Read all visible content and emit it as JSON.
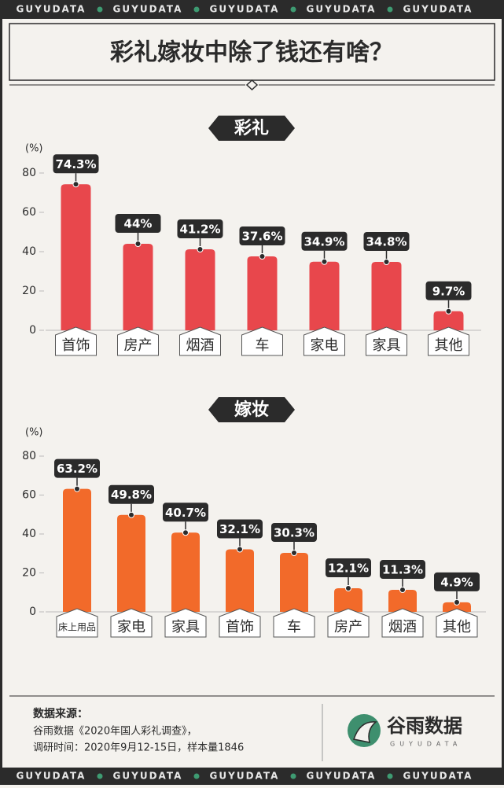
{
  "top_banner": [
    "GUYUDATA",
    "GUYUDATA",
    "GUYUDATA",
    "GUYUDATA",
    "GUYUDATA"
  ],
  "title": "彩礼嫁妆中除了钱还有啥？",
  "chart_data": [
    {
      "type": "bar",
      "title": "彩礼",
      "ylabel": "(%)",
      "categories": [
        "首饰",
        "房产",
        "烟酒",
        "车",
        "家电",
        "家具",
        "其他"
      ],
      "values": [
        74.3,
        44,
        41.2,
        37.6,
        34.9,
        34.8,
        9.7
      ],
      "value_labels": [
        "74.3%",
        "44%",
        "41.2%",
        "37.6%",
        "34.9%",
        "34.8%",
        "9.7%"
      ],
      "color": "#e8474c",
      "ylim": [
        0,
        80
      ],
      "yticks": [
        0,
        20,
        40,
        60,
        80
      ],
      "grid": false
    },
    {
      "type": "bar",
      "title": "嫁妆",
      "ylabel": "(%)",
      "categories": [
        "床上用品",
        "家电",
        "家具",
        "首饰",
        "车",
        "房产",
        "烟酒",
        "其他"
      ],
      "values": [
        63.2,
        49.8,
        40.7,
        32.1,
        30.3,
        12.1,
        11.3,
        4.9
      ],
      "value_labels": [
        "63.2%",
        "49.8%",
        "40.7%",
        "32.1%",
        "30.3%",
        "12.1%",
        "11.3%",
        "4.9%"
      ],
      "color": "#f26a2a",
      "ylim": [
        0,
        80
      ],
      "yticks": [
        0,
        20,
        40,
        60,
        80
      ],
      "grid": false
    }
  ],
  "footer": {
    "source_heading": "数据来源：",
    "source": "谷雨数据《2020年国人彩礼调查》，",
    "survey": "调研时间：2020年9月12-15日，样本量1846",
    "logo_name": "谷雨数据",
    "logo_sub": "GUYUDATA"
  },
  "bottom_banner": [
    "GUYUDATA",
    "GUYUDATA",
    "GUYUDATA",
    "GUYUDATA",
    "GUYUDATA"
  ]
}
